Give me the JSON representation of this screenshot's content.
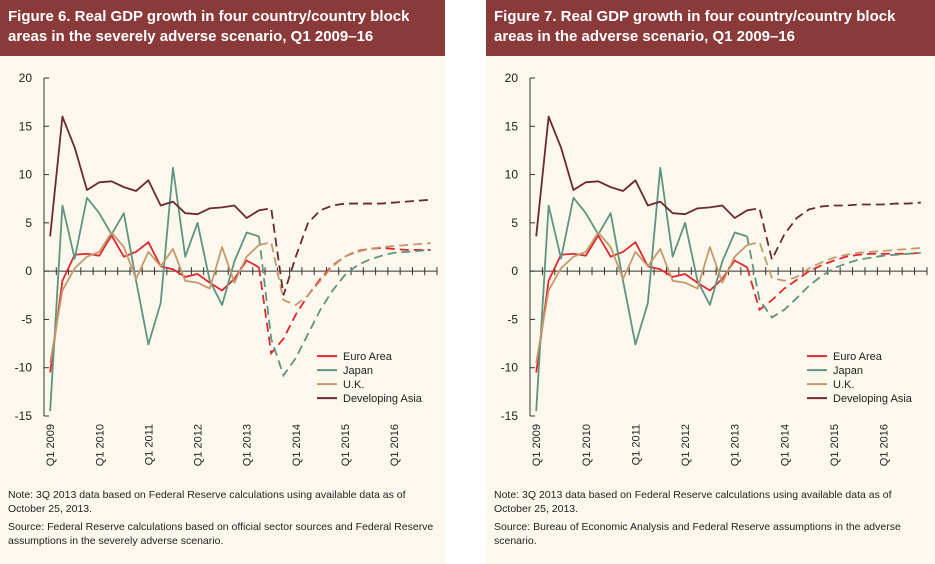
{
  "panels": [
    {
      "title": "Figure 6. Real GDP growth in four country/country block areas in the severely adverse scenario, Q1 2009–16",
      "note": "Note: 3Q 2013 data based on Federal Reserve calculations using available data as of October 25, 2013.",
      "source": "Source: Federal Reserve calculations based on official sector sources and Federal Reserve assumptions in the severely adverse scenario."
    },
    {
      "title": "Figure 7. Real GDP growth in four country/country block areas in the adverse scenario, Q1 2009–16",
      "note": "Note: 3Q 2013 data based on Federal Reserve calculations using available data as of October 25, 2013.",
      "source": "Source: Bureau of Economic Analysis and Federal Reserve assumptions in the adverse scenario."
    }
  ],
  "chart_data": [
    {
      "type": "line",
      "x_tick_labels": [
        "Q1 2009",
        "Q1 2010",
        "Q1 2011",
        "Q1 2012",
        "Q1 2013",
        "Q1 2014",
        "Q1 2015",
        "Q1 2016"
      ],
      "quarters": 32,
      "ylim": [
        -15,
        20
      ],
      "y_ticks": [
        20,
        15,
        10,
        5,
        0,
        -5,
        -10,
        -15
      ],
      "historical_through_index": 18,
      "legend": "lower-right",
      "series": [
        {
          "name": "Euro Area",
          "color": "#e0282e",
          "values": [
            -10.5,
            -1.0,
            1.7,
            1.8,
            1.6,
            3.7,
            1.5,
            2.0,
            3.0,
            0.5,
            0.2,
            -0.6,
            -0.3,
            -1.2,
            -2.0,
            -0.8,
            1.1,
            0.4,
            -8.5,
            -7.0,
            -4.5,
            -2.5,
            -0.8,
            0.6,
            1.5,
            2.1,
            2.3,
            2.4,
            2.3,
            2.2,
            2.2,
            2.2
          ]
        },
        {
          "name": "Japan",
          "color": "#5e9480",
          "values": [
            -14.5,
            6.8,
            1.3,
            7.6,
            6.0,
            3.8,
            6.0,
            -1.0,
            -7.6,
            -3.3,
            10.7,
            1.5,
            5.0,
            -1.0,
            -3.5,
            1.0,
            4.0,
            3.6,
            -7.0,
            -10.8,
            -9.0,
            -6.5,
            -4.0,
            -2.0,
            -0.4,
            0.6,
            1.2,
            1.6,
            1.9,
            2.0,
            2.1,
            2.2
          ]
        },
        {
          "name": "U.K.",
          "color": "#c49a6c",
          "values": [
            -9.5,
            -2.0,
            0.3,
            1.5,
            2.0,
            4.0,
            2.5,
            -0.8,
            2.0,
            0.5,
            2.3,
            -1.0,
            -1.2,
            -1.8,
            2.5,
            -1.2,
            1.5,
            2.7,
            3.0,
            -3.0,
            -3.5,
            -2.5,
            -1.0,
            0.5,
            1.5,
            2.0,
            2.3,
            2.5,
            2.6,
            2.7,
            2.8,
            2.9
          ]
        },
        {
          "name": "Developing Asia",
          "color": "#6b2a2e",
          "values": [
            3.6,
            16.0,
            12.8,
            8.4,
            9.2,
            9.3,
            8.7,
            8.3,
            9.4,
            6.8,
            7.2,
            6.0,
            5.9,
            6.5,
            6.6,
            6.8,
            5.5,
            6.3,
            6.5,
            -2.5,
            1.5,
            5.0,
            6.3,
            6.8,
            7.0,
            7.0,
            7.0,
            7.0,
            7.1,
            7.2,
            7.3,
            7.4
          ]
        }
      ]
    },
    {
      "type": "line",
      "x_tick_labels": [
        "Q1 2009",
        "Q1 2010",
        "Q1 2011",
        "Q1 2012",
        "Q1 2013",
        "Q1 2014",
        "Q1 2015",
        "Q1 2016"
      ],
      "quarters": 32,
      "ylim": [
        -15,
        20
      ],
      "y_ticks": [
        20,
        15,
        10,
        5,
        0,
        -5,
        -10,
        -15
      ],
      "historical_through_index": 18,
      "legend": "lower-right",
      "series": [
        {
          "name": "Euro Area",
          "color": "#e0282e",
          "values": [
            -10.5,
            -1.0,
            1.7,
            1.8,
            1.6,
            3.7,
            1.5,
            2.0,
            3.0,
            0.5,
            0.2,
            -0.6,
            -0.3,
            -1.2,
            -2.0,
            -0.8,
            1.1,
            0.4,
            -4.0,
            -3.0,
            -1.8,
            -0.9,
            0.0,
            0.6,
            1.1,
            1.5,
            1.7,
            1.8,
            1.8,
            1.8,
            1.8,
            1.9
          ]
        },
        {
          "name": "Japan",
          "color": "#5e9480",
          "values": [
            -14.5,
            6.8,
            1.3,
            7.6,
            6.0,
            3.8,
            6.0,
            -1.0,
            -7.6,
            -3.3,
            10.7,
            1.5,
            5.0,
            -1.0,
            -3.5,
            1.0,
            4.0,
            3.6,
            -3.0,
            -4.8,
            -4.0,
            -2.8,
            -1.5,
            -0.5,
            0.3,
            0.8,
            1.2,
            1.4,
            1.6,
            1.7,
            1.8,
            1.9
          ]
        },
        {
          "name": "U.K.",
          "color": "#c49a6c",
          "values": [
            -9.5,
            -2.0,
            0.3,
            1.5,
            2.0,
            4.0,
            2.5,
            -0.8,
            2.0,
            0.5,
            2.3,
            -1.0,
            -1.2,
            -1.8,
            2.5,
            -1.2,
            1.5,
            2.7,
            3.0,
            -0.7,
            -1.0,
            -0.6,
            0.3,
            0.9,
            1.4,
            1.7,
            1.9,
            2.0,
            2.1,
            2.2,
            2.3,
            2.4
          ]
        },
        {
          "name": "Developing Asia",
          "color": "#6b2a2e",
          "values": [
            3.6,
            16.0,
            12.8,
            8.4,
            9.2,
            9.3,
            8.7,
            8.3,
            9.4,
            6.8,
            7.2,
            6.0,
            5.9,
            6.5,
            6.6,
            6.8,
            5.5,
            6.3,
            6.5,
            1.2,
            3.8,
            5.5,
            6.4,
            6.7,
            6.8,
            6.8,
            6.9,
            6.9,
            6.9,
            7.0,
            7.0,
            7.1
          ]
        }
      ]
    }
  ]
}
